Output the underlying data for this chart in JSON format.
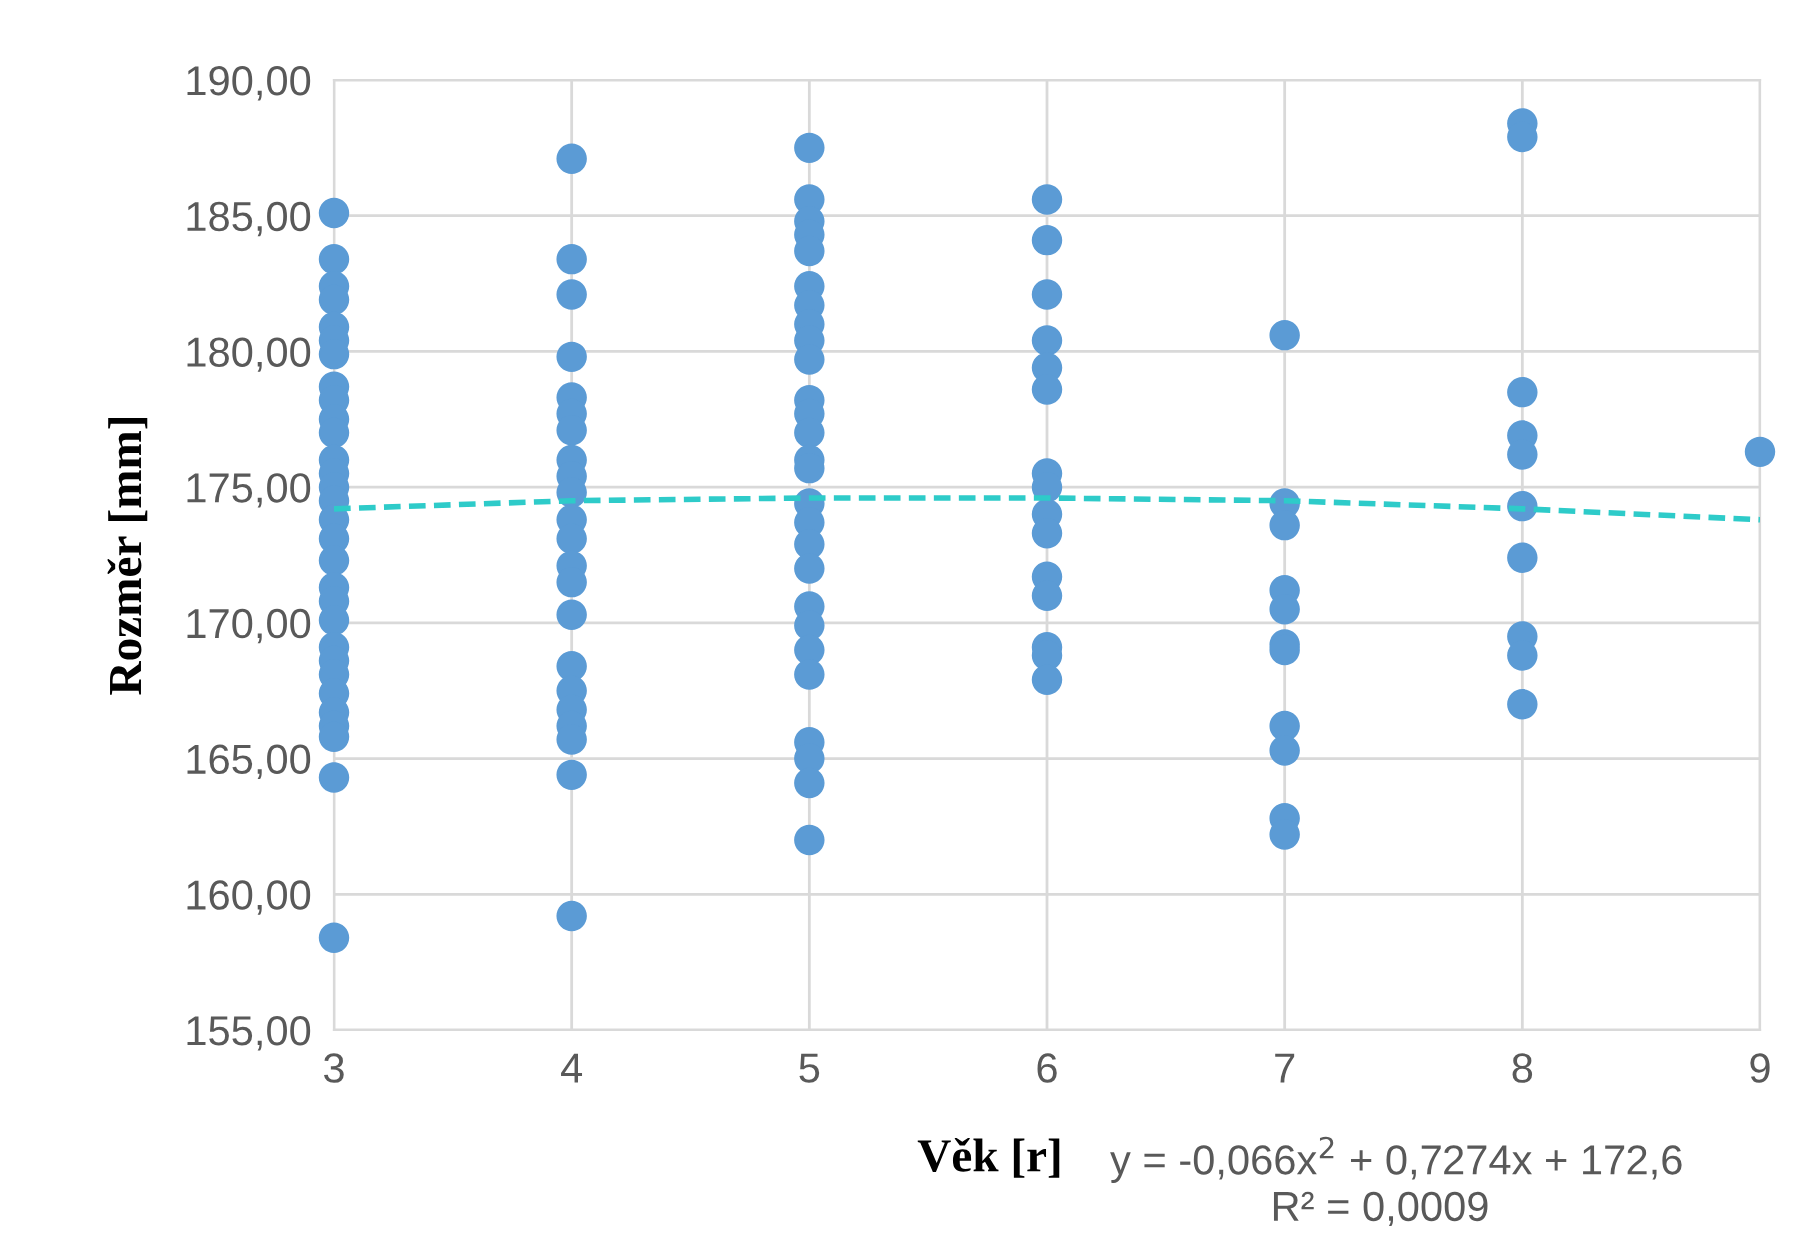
{
  "chart_data": {
    "type": "scatter",
    "xlabel": "Věk [r]",
    "ylabel": "Rozměr [mm]",
    "xlim": [
      3,
      9
    ],
    "xticks": [
      3,
      4,
      5,
      6,
      7,
      8,
      9
    ],
    "ylim": [
      155,
      190
    ],
    "yticks": [
      {
        "value": 155,
        "label": "155,00"
      },
      {
        "value": 160,
        "label": "160,00"
      },
      {
        "value": 165,
        "label": "165,00"
      },
      {
        "value": 170,
        "label": "170,00"
      },
      {
        "value": 175,
        "label": "175,00"
      },
      {
        "value": 180,
        "label": "180,00"
      },
      {
        "value": 185,
        "label": "185,00"
      },
      {
        "value": 190,
        "label": "190,00"
      }
    ],
    "grid": true,
    "legend": false,
    "marker": "circle",
    "annotations": [
      "y = -0,066x$^{2}$ + 0,7274x + 172,6",
      "R² = 0,0009"
    ],
    "series": [
      {
        "color": "#5b9bd5",
        "x": [
          3,
          3,
          3,
          3,
          3,
          3,
          3,
          3,
          3,
          3,
          3,
          3,
          3,
          3,
          3,
          3,
          3,
          3,
          3,
          3,
          3,
          3,
          3,
          3,
          3,
          3,
          3,
          3,
          3,
          3,
          4,
          4,
          4,
          4,
          4,
          4,
          4,
          4,
          4,
          4,
          4,
          4,
          4,
          4,
          4,
          4,
          4,
          4,
          4,
          4,
          4,
          4,
          5,
          5,
          5,
          5,
          5,
          5,
          5,
          5,
          5,
          5,
          5,
          5,
          5,
          5,
          5,
          5,
          5,
          5,
          5,
          5,
          5,
          5,
          5,
          5,
          5,
          5,
          5,
          6,
          6,
          6,
          6,
          6,
          6,
          6,
          6,
          6,
          6,
          6,
          6,
          6,
          6,
          6,
          7,
          7,
          7,
          7,
          7,
          7,
          7,
          7,
          7,
          7,
          7,
          8,
          8,
          8,
          8,
          8,
          8,
          8,
          8,
          8,
          8,
          9
        ],
        "values": [
          185.1,
          183.4,
          182.4,
          181.9,
          180.9,
          180.4,
          179.9,
          178.7,
          178.2,
          177.5,
          177.0,
          176.0,
          175.5,
          175.0,
          174.5,
          173.8,
          173.1,
          172.3,
          171.3,
          170.8,
          170.1,
          169.1,
          168.6,
          168.1,
          167.4,
          166.7,
          166.2,
          165.8,
          164.3,
          158.4,
          187.1,
          183.4,
          182.1,
          179.8,
          178.3,
          177.7,
          177.1,
          176.0,
          175.4,
          174.8,
          173.8,
          173.1,
          172.1,
          171.5,
          170.3,
          168.4,
          167.5,
          166.8,
          166.2,
          165.7,
          164.4,
          159.2,
          187.5,
          185.6,
          184.8,
          184.3,
          183.7,
          182.4,
          181.7,
          181.0,
          180.4,
          179.7,
          178.2,
          177.7,
          177.0,
          176.0,
          175.7,
          174.4,
          173.7,
          172.9,
          172.0,
          170.6,
          169.9,
          169.0,
          168.1,
          165.6,
          165.0,
          164.1,
          162.0,
          185.6,
          184.1,
          182.1,
          180.4,
          179.4,
          178.6,
          175.5,
          175.0,
          174.0,
          173.3,
          171.7,
          171.0,
          169.1,
          168.8,
          167.9,
          180.6,
          174.4,
          173.6,
          171.2,
          170.5,
          169.2,
          169.0,
          166.2,
          165.3,
          162.8,
          162.2,
          188.4,
          187.9,
          178.5,
          176.9,
          176.2,
          174.3,
          172.4,
          169.5,
          168.8,
          167.0,
          176.3
        ]
      },
      {
        "type": "line",
        "color": "#2ecbc9",
        "line_style": "dashed",
        "marker": "none",
        "x": [
          3,
          4,
          5,
          6,
          7,
          8,
          9
        ],
        "values": [
          174.2,
          174.5,
          174.6,
          174.6,
          174.5,
          174.2,
          173.8
        ]
      }
    ]
  }
}
